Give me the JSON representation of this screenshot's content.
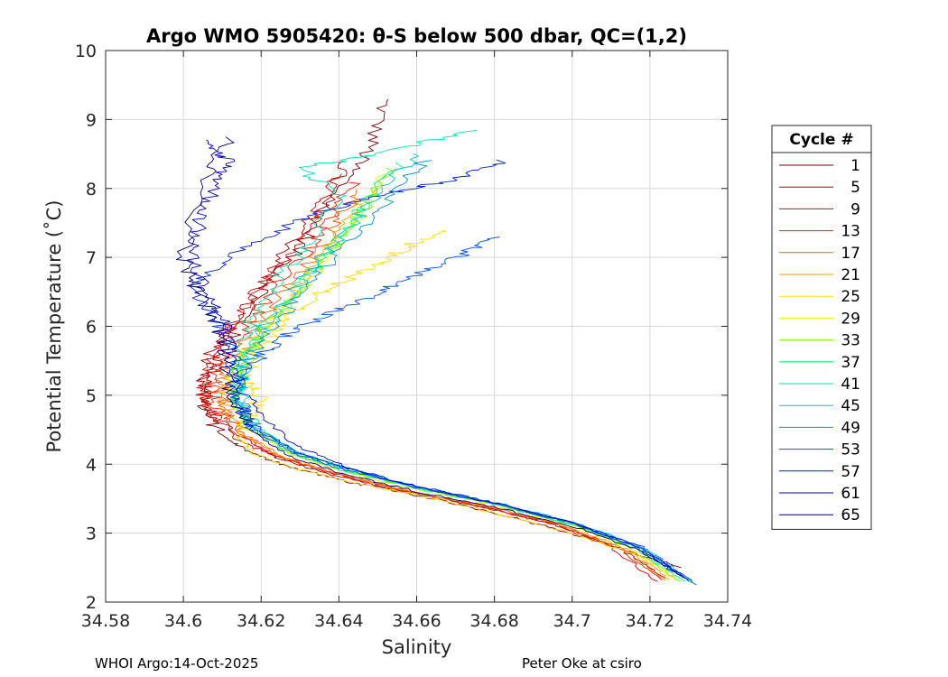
{
  "chart_data": {
    "type": "line",
    "title": "Argo WMO 5905420: θ-S below 500 dbar,  QC=(1,2)",
    "xlabel": "Salinity",
    "ylabel": "Potential Temperature (˚C)",
    "xlim": [
      34.58,
      34.74
    ],
    "ylim": [
      2,
      10
    ],
    "xticks": [
      "34.58",
      "34.6",
      "34.62",
      "34.64",
      "34.66",
      "34.68",
      "34.7",
      "34.72",
      "34.74"
    ],
    "yticks": [
      "2",
      "3",
      "4",
      "5",
      "6",
      "7",
      "8",
      "9",
      "10"
    ],
    "grid": true,
    "legend_title": "Cycle #",
    "legend_position": "right outside",
    "series": [
      {
        "name": "1",
        "color": "#800000",
        "x": [
          34.652,
          34.648,
          34.64,
          34.632,
          34.622,
          34.614,
          34.608,
          34.605,
          34.61,
          34.618,
          34.628,
          34.642,
          34.66,
          34.68,
          34.7,
          34.716,
          34.728
        ],
        "y": [
          9.3,
          8.6,
          8.0,
          7.3,
          6.6,
          6.0,
          5.4,
          4.8,
          4.4,
          4.15,
          3.95,
          3.75,
          3.55,
          3.3,
          3.0,
          2.7,
          2.5
        ]
      },
      {
        "name": "5",
        "color": "#b20000",
        "x": [
          34.642,
          34.636,
          34.628,
          34.62,
          34.612,
          34.606,
          34.604,
          34.607,
          34.614,
          34.624,
          34.638,
          34.656,
          34.676,
          34.696,
          34.712,
          34.724
        ],
        "y": [
          8.4,
          7.8,
          7.2,
          6.6,
          6.0,
          5.5,
          5.1,
          4.75,
          4.35,
          4.1,
          3.85,
          3.62,
          3.4,
          3.12,
          2.78,
          2.35
        ]
      },
      {
        "name": "9",
        "color": "#e60000",
        "x": [
          34.64,
          34.634,
          34.626,
          34.618,
          34.61,
          34.605,
          34.606,
          34.612,
          34.622,
          34.636,
          34.654,
          34.674,
          34.694,
          34.71,
          34.722
        ],
        "y": [
          8.2,
          7.6,
          7.0,
          6.4,
          5.8,
          5.3,
          4.9,
          4.5,
          4.15,
          3.9,
          3.65,
          3.42,
          3.15,
          2.8,
          2.3
        ]
      },
      {
        "name": "13",
        "color": "#ff1a00",
        "x": [
          34.644,
          34.637,
          34.629,
          34.62,
          34.612,
          34.607,
          34.608,
          34.614,
          34.624,
          34.638,
          34.656,
          34.676,
          34.696,
          34.712,
          34.723
        ],
        "y": [
          8.1,
          7.5,
          6.9,
          6.3,
          5.7,
          5.25,
          4.85,
          4.45,
          4.12,
          3.88,
          3.63,
          3.4,
          3.12,
          2.78,
          2.32
        ]
      },
      {
        "name": "17",
        "color": "#ff5a00",
        "x": [
          34.646,
          34.639,
          34.631,
          34.622,
          34.614,
          34.609,
          34.61,
          34.615,
          34.625,
          34.639,
          34.657,
          34.677,
          34.697,
          34.713,
          34.724
        ],
        "y": [
          8.0,
          7.45,
          6.85,
          6.25,
          5.65,
          5.2,
          4.85,
          4.45,
          4.12,
          3.87,
          3.62,
          3.4,
          3.12,
          2.78,
          2.32
        ]
      },
      {
        "name": "21",
        "color": "#ff9a00",
        "x": [
          34.648,
          34.641,
          34.633,
          34.624,
          34.616,
          34.611,
          34.611,
          34.616,
          34.626,
          34.64,
          34.658,
          34.678,
          34.698,
          34.714,
          34.725
        ],
        "y": [
          8.0,
          7.4,
          6.8,
          6.2,
          5.6,
          5.15,
          4.8,
          4.42,
          4.1,
          3.86,
          3.61,
          3.39,
          3.11,
          2.77,
          2.33
        ]
      },
      {
        "name": "25",
        "color": "#ffdd00",
        "x": [
          34.666,
          34.656,
          34.646,
          34.636,
          34.626,
          34.618,
          34.616,
          34.62,
          34.616,
          34.614,
          34.618,
          34.628,
          34.642,
          34.66,
          34.68,
          34.7,
          34.716,
          34.727
        ],
        "y": [
          7.4,
          7.1,
          6.8,
          6.5,
          6.1,
          5.6,
          5.2,
          4.95,
          4.65,
          4.4,
          4.15,
          3.95,
          3.75,
          3.55,
          3.3,
          3.0,
          2.7,
          2.32
        ]
      },
      {
        "name": "29",
        "color": "#d4ff00",
        "x": [
          34.652,
          34.645,
          34.637,
          34.628,
          34.619,
          34.613,
          34.613,
          34.617,
          34.627,
          34.641,
          34.659,
          34.679,
          34.699,
          34.715,
          34.727
        ],
        "y": [
          8.2,
          7.6,
          7.0,
          6.4,
          5.8,
          5.3,
          4.9,
          4.5,
          4.15,
          3.9,
          3.65,
          3.42,
          3.13,
          2.78,
          2.3
        ]
      },
      {
        "name": "33",
        "color": "#7aff00",
        "x": [
          34.654,
          34.646,
          34.638,
          34.629,
          34.62,
          34.614,
          34.614,
          34.618,
          34.628,
          34.642,
          34.66,
          34.68,
          34.7,
          34.716,
          34.728
        ],
        "y": [
          8.3,
          7.7,
          7.1,
          6.5,
          5.9,
          5.35,
          4.9,
          4.5,
          4.15,
          3.9,
          3.65,
          3.42,
          3.13,
          2.78,
          2.3
        ]
      },
      {
        "name": "37",
        "color": "#00ff66",
        "x": [
          34.656,
          34.647,
          34.639,
          34.63,
          34.621,
          34.615,
          34.614,
          34.618,
          34.628,
          34.642,
          34.66,
          34.68,
          34.7,
          34.716,
          34.729
        ],
        "y": [
          8.4,
          7.8,
          7.2,
          6.6,
          6.0,
          5.4,
          4.95,
          4.5,
          4.15,
          3.9,
          3.65,
          3.42,
          3.13,
          2.78,
          2.3
        ]
      },
      {
        "name": "41",
        "color": "#00e6b0",
        "x": [
          34.674,
          34.65,
          34.63,
          34.64,
          34.632,
          34.622,
          34.615,
          34.614,
          34.618,
          34.628,
          34.642,
          34.66,
          34.68,
          34.7,
          34.717,
          34.73
        ],
        "y": [
          8.85,
          8.5,
          8.3,
          7.9,
          7.2,
          6.5,
          5.8,
          5.2,
          4.6,
          4.2,
          3.92,
          3.66,
          3.43,
          3.14,
          2.79,
          2.32
        ]
      },
      {
        "name": "45",
        "color": "#00c8d8",
        "x": [
          34.66,
          34.65,
          34.64,
          34.631,
          34.622,
          34.616,
          34.614,
          34.618,
          34.629,
          34.643,
          34.661,
          34.681,
          34.701,
          34.718,
          34.731
        ],
        "y": [
          8.5,
          7.9,
          7.3,
          6.7,
          6.1,
          5.5,
          5.0,
          4.55,
          4.18,
          3.92,
          3.66,
          3.43,
          3.14,
          2.79,
          2.28
        ]
      },
      {
        "name": "49",
        "color": "#0096c8",
        "x": [
          34.662,
          34.652,
          34.642,
          34.632,
          34.623,
          34.616,
          34.614,
          34.618,
          34.629,
          34.643,
          34.661,
          34.681,
          34.701,
          34.718,
          34.731
        ],
        "y": [
          8.4,
          7.8,
          7.2,
          6.6,
          6.0,
          5.45,
          5.0,
          4.55,
          4.18,
          3.92,
          3.66,
          3.43,
          3.14,
          2.79,
          2.3
        ]
      },
      {
        "name": "53",
        "color": "#0050ff",
        "x": [
          34.68,
          34.67,
          34.658,
          34.646,
          34.634,
          34.624,
          34.617,
          34.614,
          34.618,
          34.629,
          34.643,
          34.661,
          34.681,
          34.701,
          34.718,
          34.732
        ],
        "y": [
          7.3,
          7.0,
          6.7,
          6.4,
          6.1,
          5.8,
          5.4,
          4.9,
          4.5,
          4.15,
          3.9,
          3.65,
          3.42,
          3.13,
          2.78,
          2.25
        ]
      },
      {
        "name": "57",
        "color": "#0020e0",
        "x": [
          34.682,
          34.668,
          34.65,
          34.632,
          34.614,
          34.602,
          34.608,
          34.613,
          34.613,
          34.618,
          34.629,
          34.643,
          34.661,
          34.681,
          34.701,
          34.718,
          34.73
        ],
        "y": [
          8.4,
          8.1,
          7.9,
          7.6,
          7.1,
          6.6,
          6.1,
          5.6,
          5.0,
          4.55,
          4.18,
          3.92,
          3.66,
          3.43,
          3.14,
          2.79,
          2.3
        ]
      },
      {
        "name": "61",
        "color": "#0000c8",
        "x": [
          34.604,
          34.612,
          34.608,
          34.604,
          34.602,
          34.606,
          34.611,
          34.612,
          34.617,
          34.628,
          34.642,
          34.66,
          34.68,
          34.7,
          34.717,
          34.729
        ],
        "y": [
          8.7,
          8.4,
          8.0,
          7.5,
          7.0,
          6.5,
          6.0,
          5.5,
          4.9,
          4.3,
          3.95,
          3.68,
          3.44,
          3.15,
          2.8,
          2.35
        ]
      },
      {
        "name": "65",
        "color": "#000080",
        "x": [
          34.612,
          34.606,
          34.6,
          34.603,
          34.608,
          34.611,
          34.612,
          34.617,
          34.628,
          34.642,
          34.66,
          34.68,
          34.7,
          34.717,
          34.728
        ],
        "y": [
          8.75,
          8.2,
          7.0,
          6.6,
          6.1,
          5.6,
          5.1,
          4.5,
          4.1,
          3.85,
          3.6,
          3.38,
          3.1,
          2.75,
          2.38
        ]
      }
    ]
  },
  "footer": {
    "left": "WHOI Argo:14-Oct-2025",
    "right": "Peter Oke at csiro"
  }
}
